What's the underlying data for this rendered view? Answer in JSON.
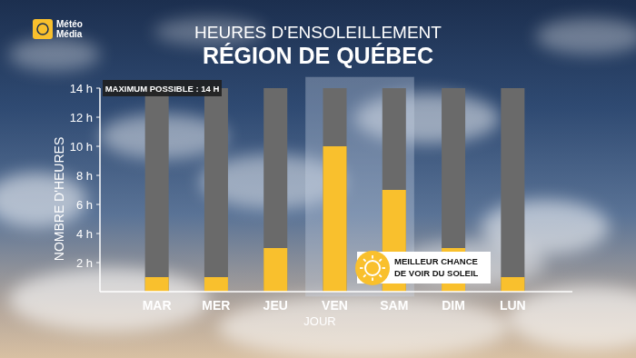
{
  "chart_data": {
    "type": "bar",
    "logo": [
      "Météo",
      "Média"
    ],
    "title": "HEURES D'ENSOLEILLEMENT",
    "subtitle": "RÉGION DE QUÉBEC",
    "y_label": "NOMBRE D'HEURES",
    "x_label": "JOUR",
    "categories": [
      "MAR",
      "MER",
      "JEU",
      "VEN",
      "SAM",
      "DIM",
      "LUN"
    ],
    "values": [
      1,
      1,
      3,
      10,
      7,
      3,
      1
    ],
    "color": "#f9c02d",
    "max_possible": 14,
    "max_color": "#6a6a6a",
    "max_label": "MAXIMUM POSSIBLE : 14 H",
    "highlight": "VEN",
    "annotation": [
      "MEILLEUR CHANCE",
      "DE VOIR DU SOLEIL"
    ],
    "ylim": [
      0,
      14
    ],
    "yticks": [
      {
        "value": 2,
        "label": "2 h"
      },
      {
        "value": 4,
        "label": "4 h"
      },
      {
        "value": 6,
        "label": "6 h"
      },
      {
        "value": 8,
        "label": "8 h"
      },
      {
        "value": 10,
        "label": "10 h"
      },
      {
        "value": 12,
        "label": "12 h"
      },
      {
        "value": 14,
        "label": "14 h"
      }
    ],
    "grid": false,
    "data_labels": false
  }
}
